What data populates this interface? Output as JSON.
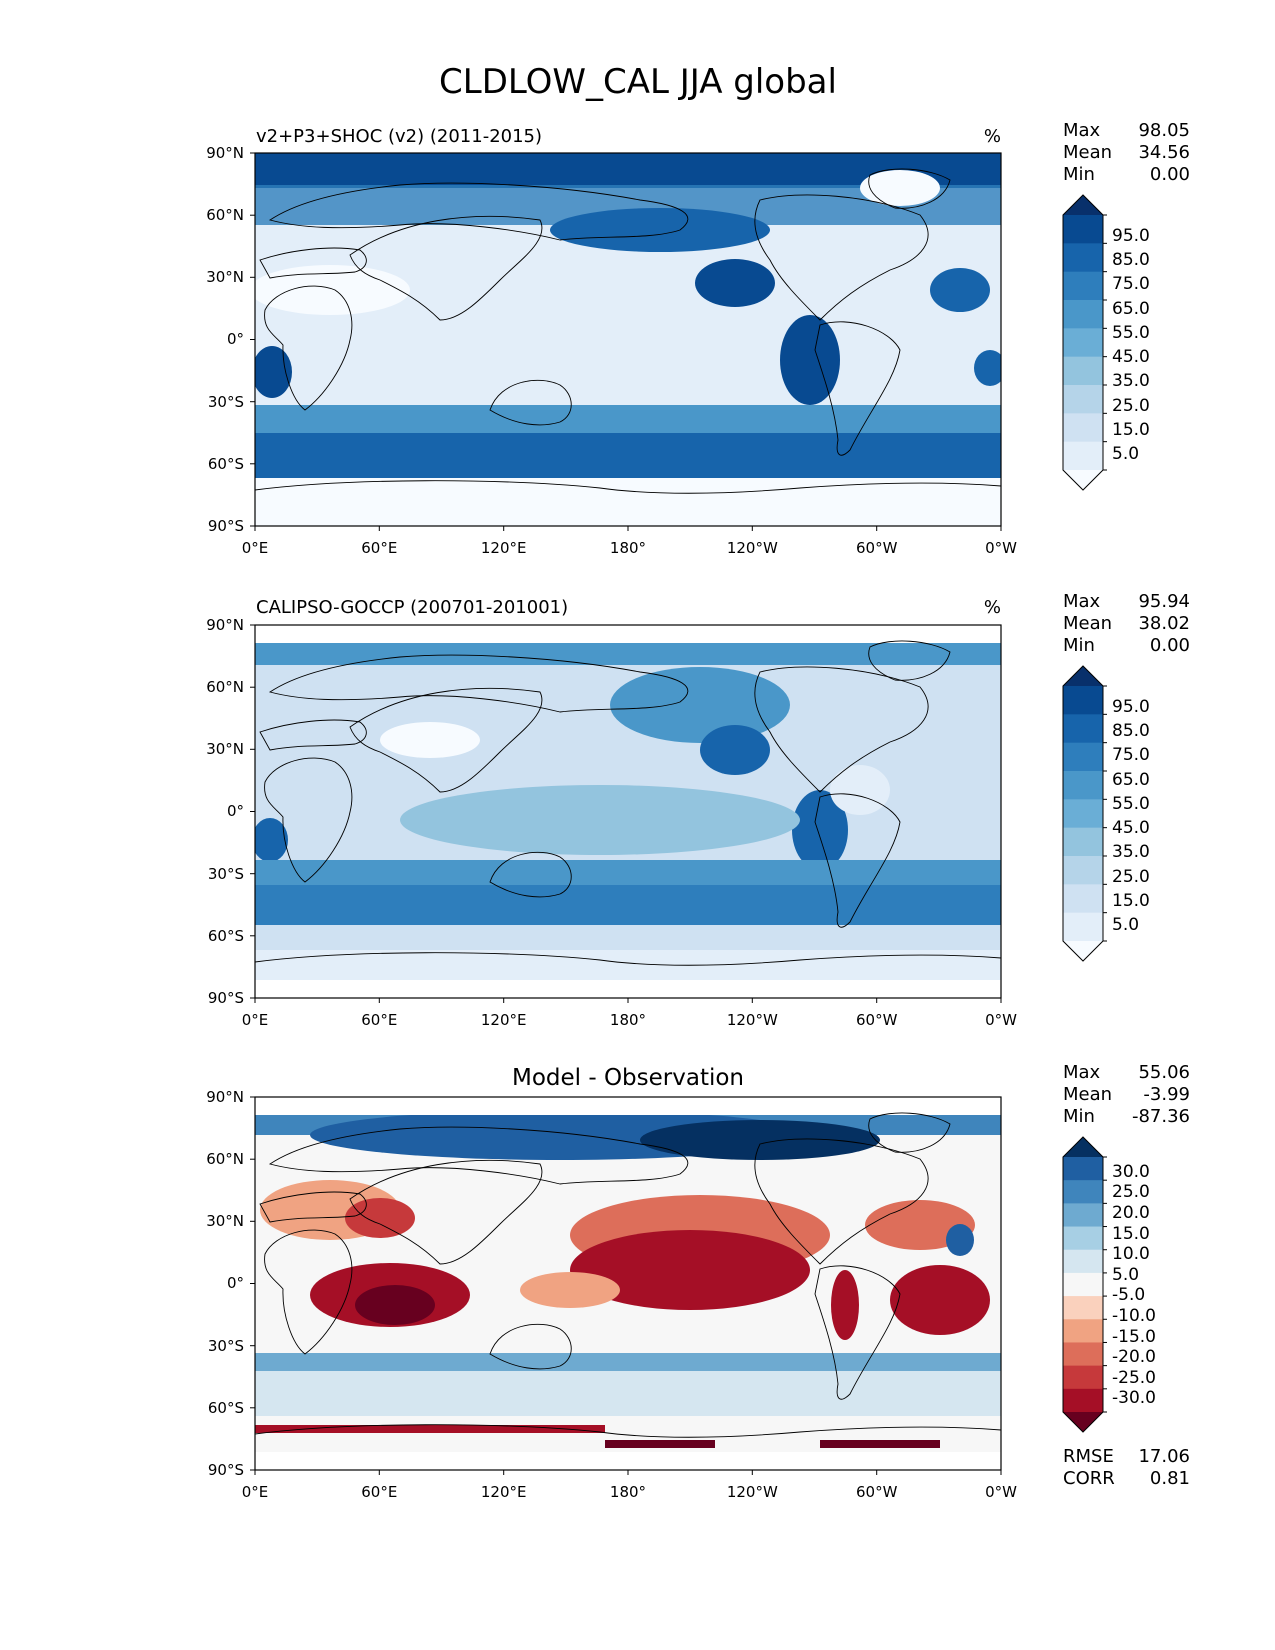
{
  "title": "CLDLOW_CAL JJA global",
  "lat_labels": [
    "90°N",
    "60°N",
    "30°N",
    "0°",
    "30°S",
    "60°S",
    "90°S"
  ],
  "lon_labels": [
    "0°E",
    "60°E",
    "120°E",
    "180°",
    "120°W",
    "60°W",
    "0°W"
  ],
  "panels": [
    {
      "left_title": "v2+P3+SHOC (v2) (2011-2015)",
      "center_title": "",
      "units": "%",
      "stats": [
        {
          "label": "Max",
          "value": "98.05"
        },
        {
          "label": "Mean",
          "value": "34.56"
        },
        {
          "label": "Min",
          "value": "0.00"
        }
      ],
      "colorbar": {
        "cmap": "Blues",
        "labels": [
          "95.0",
          "85.0",
          "75.0",
          "65.0",
          "55.0",
          "45.0",
          "35.0",
          "25.0",
          "15.0",
          "5.0"
        ],
        "colors": [
          "#f7fbff",
          "#e3eef9",
          "#cfe1f2",
          "#b5d4e9",
          "#93c4de",
          "#6aaed6",
          "#4a97c9",
          "#2e7ebc",
          "#1764ab",
          "#084a91",
          "#08306b"
        ]
      },
      "footer_stats": []
    },
    {
      "left_title": "CALIPSO-GOCCP (200701-201001)",
      "center_title": "",
      "units": "%",
      "stats": [
        {
          "label": "Max",
          "value": "95.94"
        },
        {
          "label": "Mean",
          "value": "38.02"
        },
        {
          "label": "Min",
          "value": "0.00"
        }
      ],
      "colorbar": {
        "cmap": "Blues",
        "labels": [
          "95.0",
          "85.0",
          "75.0",
          "65.0",
          "55.0",
          "45.0",
          "35.0",
          "25.0",
          "15.0",
          "5.0"
        ],
        "colors": [
          "#f7fbff",
          "#e3eef9",
          "#cfe1f2",
          "#b5d4e9",
          "#93c4de",
          "#6aaed6",
          "#4a97c9",
          "#2e7ebc",
          "#1764ab",
          "#084a91",
          "#08306b"
        ]
      },
      "footer_stats": []
    },
    {
      "left_title": "",
      "center_title": "Model - Observation",
      "units": "",
      "stats": [
        {
          "label": "Max",
          "value": "55.06"
        },
        {
          "label": "Mean",
          "value": "-3.99"
        },
        {
          "label": "Min",
          "value": "-87.36"
        }
      ],
      "colorbar": {
        "cmap": "RdBu",
        "labels": [
          "30.0",
          "25.0",
          "20.0",
          "15.0",
          "10.0",
          "5.0",
          "-5.0",
          "-10.0",
          "-15.0",
          "-20.0",
          "-25.0",
          "-30.0"
        ],
        "colors": [
          "#67001f",
          "#a50f26",
          "#c6393b",
          "#dd6e5a",
          "#f0a382",
          "#fad1bd",
          "#f7f7f7",
          "#d5e6f0",
          "#a7cfe4",
          "#6eaad0",
          "#3f85bc",
          "#1f5fa2",
          "#053061"
        ]
      },
      "footer_stats": [
        {
          "label": "RMSE",
          "value": "17.06"
        },
        {
          "label": "CORR",
          "value": "0.81"
        }
      ]
    }
  ]
}
